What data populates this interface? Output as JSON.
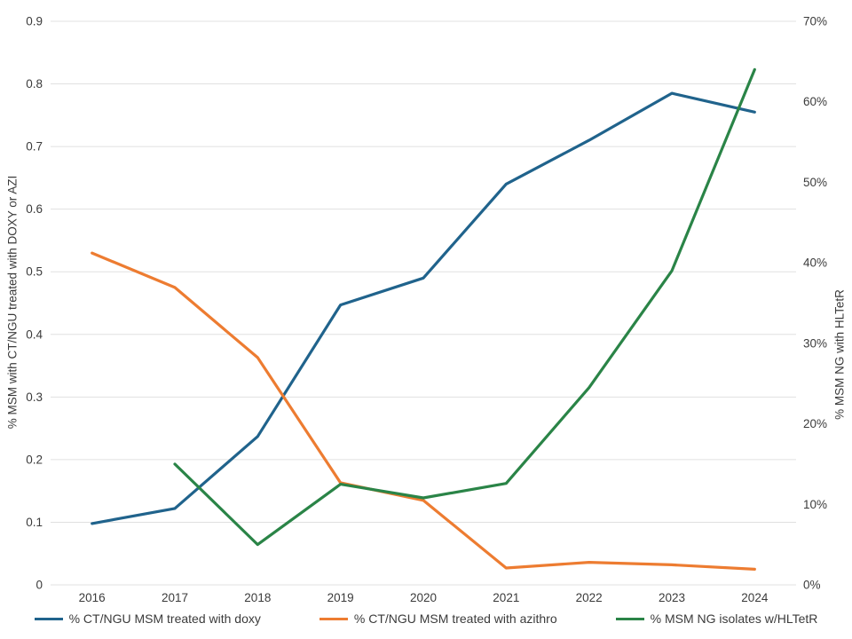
{
  "chart_data": {
    "type": "line",
    "x_tick_labels": [
      "2016",
      "2017",
      "2018",
      "2019",
      "2020",
      "2021",
      "2022",
      "2023",
      "2024"
    ],
    "series": [
      {
        "name": "% CT/NGU MSM treated with doxy",
        "axis": "left",
        "color": "#20638C",
        "values": [
          0.098,
          0.122,
          0.237,
          0.447,
          0.49,
          0.64,
          0.71,
          0.785,
          0.755
        ]
      },
      {
        "name": "% CT/NGU MSM treated with azithro",
        "axis": "left",
        "color": "#ED7C31",
        "values": [
          0.53,
          0.475,
          0.363,
          0.163,
          0.135,
          0.027,
          0.036,
          0.032,
          0.025
        ]
      },
      {
        "name": "% MSM NG isolates w/HLTetR",
        "axis": "right",
        "color": "#2A8447",
        "values": [
          null,
          15,
          5,
          12.5,
          10.8,
          12.6,
          24.5,
          39,
          64
        ]
      }
    ],
    "left_axis": {
      "label": "% MSM with CT/NGU treated with DOXY or AZI",
      "min": 0,
      "max": 0.9,
      "tick_values": [
        0,
        0.1,
        0.2,
        0.3,
        0.4,
        0.5,
        0.6,
        0.7,
        0.8,
        0.9
      ],
      "tick_labels": [
        "0",
        "0.1",
        "0.2",
        "0.3",
        "0.4",
        "0.5",
        "0.6",
        "0.7",
        "0.8",
        "0.9"
      ]
    },
    "right_axis": {
      "label": "% MSM NG with HLTetR",
      "min": 0,
      "max": 70,
      "tick_values": [
        0,
        10,
        20,
        30,
        40,
        50,
        60,
        70
      ],
      "tick_labels": [
        "0%",
        "10%",
        "20%",
        "30%",
        "40%",
        "50%",
        "60%",
        "70%"
      ]
    },
    "grid": "horizontal",
    "legend_position": "bottom"
  },
  "colors": {
    "grid": "#E0E0E0",
    "text": "#3B3B3B",
    "background": "#FFFFFF"
  }
}
